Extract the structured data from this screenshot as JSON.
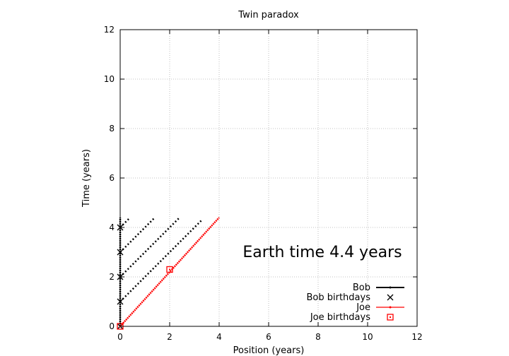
{
  "chart_data": {
    "type": "line",
    "title": "Twin paradox",
    "xlabel": "Position (years)",
    "ylabel": "Time (years)",
    "xlim": [
      0,
      12
    ],
    "ylim": [
      0,
      12
    ],
    "xticks": [
      "0",
      "2",
      "4",
      "6",
      "8",
      "10",
      "12"
    ],
    "yticks": [
      "0",
      "2",
      "4",
      "6",
      "8",
      "10",
      "12"
    ],
    "grid": true,
    "legend_position": "bottom-right",
    "annotation": "Earth time  4.4 years",
    "series": [
      {
        "name": "Bob",
        "style": "line",
        "color": "#000000",
        "x": [
          0,
          0
        ],
        "y": [
          0,
          4.4
        ]
      },
      {
        "name": "Bob birthdays",
        "style": "x-marker",
        "color": "#000000",
        "x": [
          0,
          0,
          0,
          0,
          0
        ],
        "y": [
          0,
          1,
          2,
          3,
          4
        ]
      },
      {
        "name": "Joe",
        "style": "line",
        "color": "#ff0000",
        "x": [
          0,
          4
        ],
        "y": [
          0,
          4.4
        ]
      },
      {
        "name": "Joe birthdays",
        "style": "square-marker",
        "color": "#ff0000",
        "x": [
          0,
          2
        ],
        "y": [
          0,
          2.3
        ]
      }
    ],
    "signal_lines": [
      {
        "x": [
          0,
          0.4
        ],
        "y": [
          4,
          4.4
        ]
      },
      {
        "x": [
          0,
          1.4
        ],
        "y": [
          3,
          4.4
        ]
      },
      {
        "x": [
          0,
          2.4
        ],
        "y": [
          2,
          4.4
        ]
      },
      {
        "x": [
          0,
          3.3
        ],
        "y": [
          1,
          4.3
        ]
      }
    ]
  }
}
